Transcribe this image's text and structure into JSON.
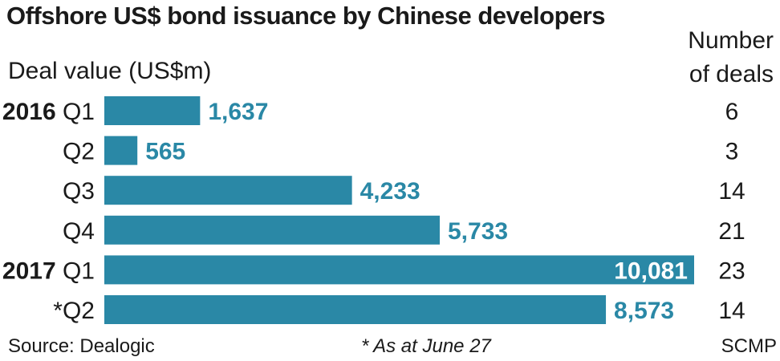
{
  "header": {
    "title": "Offshore US$ bond issuance by Chinese developers",
    "subtitle": "Deal value (US$m)",
    "deals_header_line1": "Number",
    "deals_header_line2": "of deals"
  },
  "footer": {
    "source": "Source: Dealogic",
    "note": "* As at June 27",
    "credit": "SCMP"
  },
  "colors": {
    "bar": "#2a88a6",
    "value_label": "#2a88a6",
    "value_label_inside": "#ffffff",
    "text": "#1a1a1a"
  },
  "chart_data": {
    "type": "bar",
    "orientation": "horizontal",
    "title": "Offshore US$ bond issuance by Chinese developers",
    "xlabel": "Deal value (US$m)",
    "categories": [
      {
        "year": "2016",
        "quarter": "Q1"
      },
      {
        "year": "",
        "quarter": "Q2"
      },
      {
        "year": "",
        "quarter": "Q3"
      },
      {
        "year": "",
        "quarter": "Q4"
      },
      {
        "year": "2017",
        "quarter": "Q1"
      },
      {
        "year": "",
        "quarter": "*Q2"
      }
    ],
    "values": [
      1637,
      565,
      4233,
      5733,
      10081,
      8573
    ],
    "value_labels": [
      "1,637",
      "565",
      "4,233",
      "5,733",
      "10,081",
      "8,573"
    ],
    "deals_header": "Number of deals",
    "deals": [
      6,
      3,
      14,
      21,
      23,
      14
    ],
    "xlim": [
      0,
      10081
    ]
  }
}
